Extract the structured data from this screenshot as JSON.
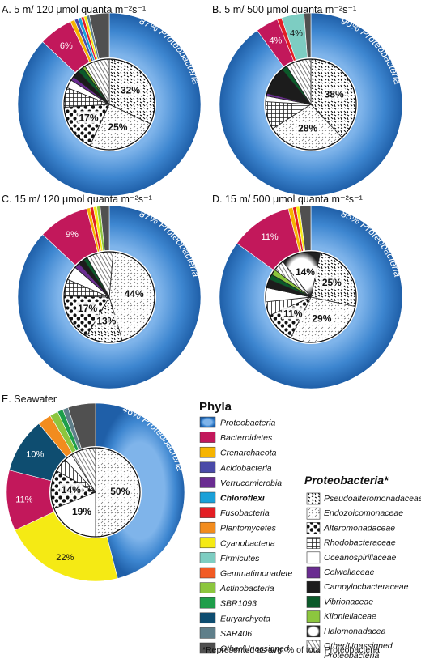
{
  "colors": {
    "Proteobacteria": "#3b82cc",
    "Bacteroidetes": "#c2185b",
    "Crenarchaeota": "#f6b400",
    "Acidobacteria": "#4a4aa8",
    "Verrucomicrobia": "#6a2c91",
    "Chloroflexi": "#1aa0d8",
    "Fusobacteria": "#e31e24",
    "Plantomycetes": "#f28c1e",
    "Cyanobacteria": "#f5ea14",
    "Firmicutes": "#7dcdc2",
    "Gemmatimonadete": "#f15a24",
    "Actinobacteria": "#8cc63e",
    "SBR1093": "#1e9e4a",
    "Euryarchyota": "#0e4d70",
    "SAR406": "#5f7f8a",
    "Other/Unassigned": "#505050"
  },
  "legend": {
    "phyla_title": "Phyla",
    "phyla": [
      {
        "name": "Proteobacteria",
        "bold": false
      },
      {
        "name": "Bacteroidetes",
        "bold": false
      },
      {
        "name": "Crenarchaeota",
        "bold": false
      },
      {
        "name": "Acidobacteria",
        "bold": false
      },
      {
        "name": "Verrucomicrobia",
        "bold": false
      },
      {
        "name": "Chloroflexi",
        "bold": true
      },
      {
        "name": "Fusobacteria",
        "bold": false
      },
      {
        "name": "Plantomycetes",
        "bold": false
      },
      {
        "name": "Cyanobacteria",
        "bold": false
      },
      {
        "name": "Firmicutes",
        "bold": false
      },
      {
        "name": "Gemmatimonadete",
        "bold": false
      },
      {
        "name": "Actinobacteria",
        "bold": false
      },
      {
        "name": "SBR1093",
        "bold": false
      },
      {
        "name": "Euryarchyota",
        "bold": false
      },
      {
        "name": "SAR406",
        "bold": false
      },
      {
        "name": "Other/Unassigned",
        "bold": false
      }
    ],
    "proteo_title": "Proteobacteria*",
    "families": [
      {
        "name": "Pseudoalteromonadaceae",
        "fill": "pseudo"
      },
      {
        "name": "Endozoicomonaceae",
        "fill": "endo"
      },
      {
        "name": "Alteromonadaceae",
        "fill": "altero"
      },
      {
        "name": "Rhodobacteraceae",
        "fill": "rhodo"
      },
      {
        "name": "Oceanospirillaceae",
        "fill": "white"
      },
      {
        "name": "Colwellaceae",
        "fill": "#6a2c91"
      },
      {
        "name": "Campylocbacteraceae",
        "fill": "#1c1c1c"
      },
      {
        "name": "Vibrionaceae",
        "fill": "#0b5a2a"
      },
      {
        "name": "Kiloniellaceae",
        "fill": "#8cc63e"
      },
      {
        "name": "Halomonadacea",
        "fill": "halo"
      },
      {
        "name": "Other/Unassigned Proteobacteria",
        "fill": "other"
      }
    ],
    "footnote": "*Represented as avg. % of total Proteobacteria"
  },
  "chart_data": [
    {
      "type": "pie",
      "title": "A. 5 m/ 120 μmol quanta m⁻²s⁻¹",
      "outer_label_main": "87% Proteobacteria",
      "outer_slices": [
        {
          "name": "Proteobacteria",
          "value": 87,
          "label": "87%"
        },
        {
          "name": "Bacteroidetes",
          "value": 6,
          "label": "6%"
        },
        {
          "name": "Crenarchaeota",
          "value": 0.8
        },
        {
          "name": "Acidobacteria",
          "value": 0.6
        },
        {
          "name": "Chloroflexi",
          "value": 0.6
        },
        {
          "name": "Fusobacteria",
          "value": 0.5
        },
        {
          "name": "Cyanobacteria",
          "value": 0.5
        },
        {
          "name": "SAR406",
          "value": 0.5
        },
        {
          "name": "Other/Unassigned",
          "value": 3.5
        }
      ],
      "inner_slices": [
        {
          "name": "Pseudoalteromonadaceae",
          "value": 32,
          "label": "32%"
        },
        {
          "name": "Endozoicomonaceae",
          "value": 25,
          "label": "25%"
        },
        {
          "name": "Alteromonadaceae",
          "value": 17,
          "label": "17%"
        },
        {
          "name": "Rhodobacteraceae",
          "value": 7
        },
        {
          "name": "Oceanospirillaceae",
          "value": 3
        },
        {
          "name": "Colwellaceae",
          "value": 1.5
        },
        {
          "name": "Campylocbacteraceae",
          "value": 2.5
        },
        {
          "name": "Vibrionaceae",
          "value": 2
        },
        {
          "name": "Kiloniellaceae",
          "value": 1
        },
        {
          "name": "Other/Unassigned Proteobacteria",
          "value": 9
        }
      ]
    },
    {
      "type": "pie",
      "title": "B. 5 m/ 500 μmol quanta m⁻²s⁻¹",
      "outer_label_main": "90% Proteobacteria",
      "outer_slices": [
        {
          "name": "Proteobacteria",
          "value": 90,
          "label": "90%"
        },
        {
          "name": "Bacteroidetes",
          "value": 4,
          "label": "4%"
        },
        {
          "name": "Fusobacteria",
          "value": 0.8
        },
        {
          "name": "Firmicutes",
          "value": 4,
          "label": "4%"
        },
        {
          "name": "Other/Unassigned",
          "value": 1.2
        }
      ],
      "inner_slices": [
        {
          "name": "Pseudoalteromonadaceae",
          "value": 38,
          "label": "38%"
        },
        {
          "name": "Endozoicomonaceae",
          "value": 28,
          "label": "28%"
        },
        {
          "name": "Rhodobacteraceae",
          "value": 10
        },
        {
          "name": "Oceanospirillaceae",
          "value": 2
        },
        {
          "name": "Colwellaceae",
          "value": 1
        },
        {
          "name": "Campylocbacteraceae",
          "value": 10
        },
        {
          "name": "Vibrionaceae",
          "value": 2
        },
        {
          "name": "Other/Unassigned Proteobacteria",
          "value": 9
        }
      ]
    },
    {
      "type": "pie",
      "title": "C. 15 m/ 120 μmol quanta m⁻²s⁻¹",
      "outer_label_main": "87% Proteobacteria",
      "outer_slices": [
        {
          "name": "Proteobacteria",
          "value": 87,
          "label": "87%"
        },
        {
          "name": "Bacteroidetes",
          "value": 9,
          "label": "9%"
        },
        {
          "name": "Crenarchaeota",
          "value": 0.6
        },
        {
          "name": "Fusobacteria",
          "value": 0.6
        },
        {
          "name": "Cyanobacteria",
          "value": 0.6
        },
        {
          "name": "Actinobacteria",
          "value": 0.6
        },
        {
          "name": "Other/Unassigned",
          "value": 1.6
        }
      ],
      "inner_slices": [
        {
          "name": "Endozoicomonaceae",
          "value": 44,
          "label": "44%"
        },
        {
          "name": "Pseudoalteromonadaceae",
          "value": 13,
          "label": "13%"
        },
        {
          "name": "Alteromonadaceae",
          "value": 17,
          "label": "17%"
        },
        {
          "name": "Rhodobacteraceae",
          "value": 6
        },
        {
          "name": "Oceanospirillaceae",
          "value": 5
        },
        {
          "name": "Colwellaceae",
          "value": 2
        },
        {
          "name": "Campylocbacteraceae",
          "value": 2
        },
        {
          "name": "Vibrionaceae",
          "value": 1.5
        },
        {
          "name": "Other/Unassigned Proteobacteria",
          "value": 9.5
        }
      ]
    },
    {
      "type": "pie",
      "title": "D. 15 m/ 500 μmol quanta m⁻²s⁻¹",
      "outer_label_main": "85% Proteobacteria",
      "outer_slices": [
        {
          "name": "Proteobacteria",
          "value": 85,
          "label": "85%"
        },
        {
          "name": "Bacteroidetes",
          "value": 11,
          "label": "11%"
        },
        {
          "name": "Crenarchaeota",
          "value": 0.8
        },
        {
          "name": "Fusobacteria",
          "value": 0.6
        },
        {
          "name": "Cyanobacteria",
          "value": 0.6
        },
        {
          "name": "Other/Unassigned",
          "value": 2
        }
      ],
      "inner_slices": [
        {
          "name": "Pseudoalteromonadaceae",
          "value": 25,
          "label": "25%"
        },
        {
          "name": "Endozoicomonaceae",
          "value": 29,
          "label": "29%"
        },
        {
          "name": "Alteromonadaceae",
          "value": 11,
          "label": "11%"
        },
        {
          "name": "Rhodobacteraceae",
          "value": 5
        },
        {
          "name": "Oceanospirillaceae",
          "value": 5
        },
        {
          "name": "Campylocbacteraceae",
          "value": 3
        },
        {
          "name": "Vibrionaceae",
          "value": 2
        },
        {
          "name": "Kiloniellaceae",
          "value": 2
        },
        {
          "name": "Other/Unassigned Proteobacteria",
          "value": 4
        },
        {
          "name": "Halomonadacea",
          "value": 14,
          "label": "14%"
        }
      ]
    },
    {
      "type": "pie",
      "title": "E. Seawater",
      "outer_label_main": "46% Proteobacteria",
      "outer_slices": [
        {
          "name": "Proteobacteria",
          "value": 46,
          "label": "46%"
        },
        {
          "name": "Cyanobacteria",
          "value": 22,
          "label": "22%"
        },
        {
          "name": "Bacteroidetes",
          "value": 11,
          "label": "11%"
        },
        {
          "name": "Euryarchyota",
          "value": 10,
          "label": "10%"
        },
        {
          "name": "Plantomycetes",
          "value": 2.5
        },
        {
          "name": "Actinobacteria",
          "value": 1.5
        },
        {
          "name": "SBR1093",
          "value": 1
        },
        {
          "name": "SAR406",
          "value": 1
        },
        {
          "name": "Other/Unassigned",
          "value": 5
        }
      ],
      "inner_slices": [
        {
          "name": "Endozoicomonaceae",
          "value": 50,
          "label": "50%"
        },
        {
          "name": "Oceanospirillaceae",
          "value": 19,
          "label": "19%"
        },
        {
          "name": "Alteromonadaceae",
          "value": 14,
          "label": "14%"
        },
        {
          "name": "Rhodobacteraceae",
          "value": 5
        },
        {
          "name": "Oceanospirillaceae",
          "value": 3
        },
        {
          "name": "Other/Unassigned Proteobacteria",
          "value": 9
        }
      ]
    }
  ]
}
